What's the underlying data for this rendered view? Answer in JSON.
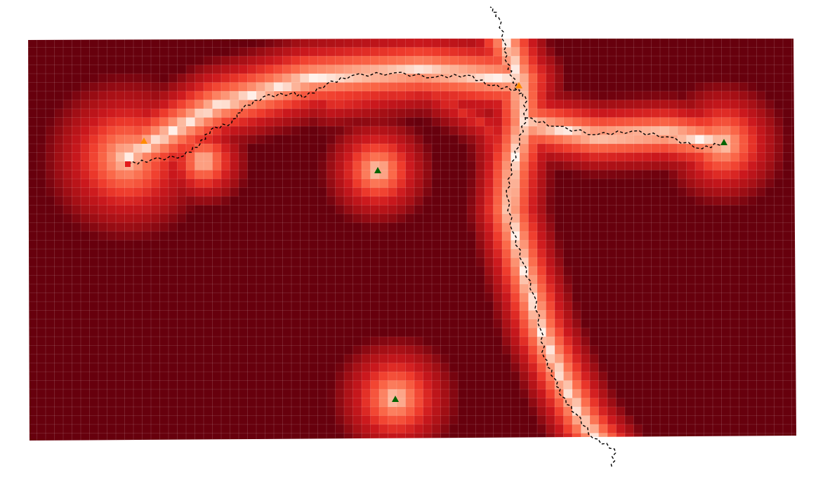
{
  "map": {
    "kind": "cost-surface heatmap with path",
    "colors": {
      "background": "#ffffff",
      "low": "#67000d",
      "mid": "#ef3b2c",
      "high": "#fff5f0",
      "gridline": "#ffffff",
      "path": "#000000",
      "start_marker": "#e31a1c",
      "waypoint_marker": "#ff8c00",
      "target_marker": "#006400"
    },
    "markers": [
      {
        "id": "start",
        "shape": "square-icon",
        "color": "#e31a1c"
      },
      {
        "id": "waypoint-1",
        "shape": "triangle-icon",
        "color": "#ff8c00"
      },
      {
        "id": "waypoint-2",
        "shape": "triangle-icon",
        "color": "#ff8c00"
      },
      {
        "id": "target-1",
        "shape": "triangle-icon",
        "color": "#006400"
      },
      {
        "id": "target-2",
        "shape": "triangle-icon",
        "color": "#006400"
      },
      {
        "id": "target-3",
        "shape": "triangle-icon",
        "color": "#006400"
      }
    ]
  }
}
